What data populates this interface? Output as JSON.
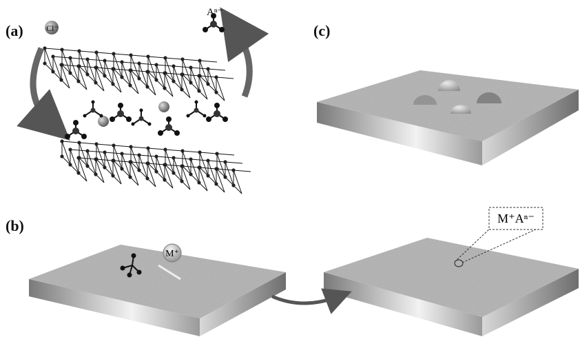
{
  "panels": {
    "a": {
      "label": "(a)",
      "chloride": "Cl⁻",
      "anion": "Aⁿ⁻"
    },
    "b": {
      "label": "(b)",
      "cation": "M⁺"
    },
    "c": {
      "label": "(c)"
    },
    "d": {
      "salt": "M⁺Aⁿ⁻"
    }
  }
}
